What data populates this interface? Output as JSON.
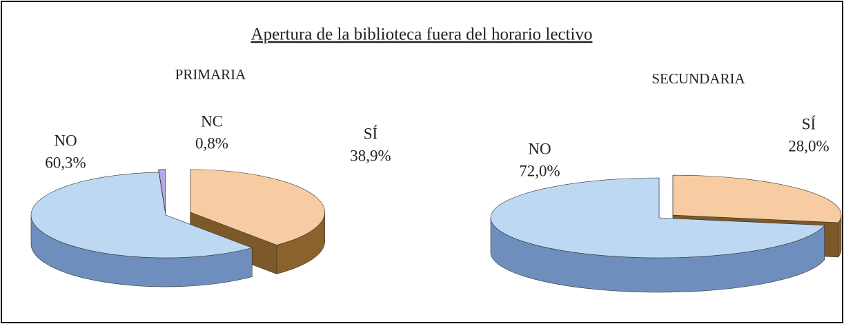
{
  "title": "Apertura de la biblioteca fuera del horario lectivo",
  "chart_data": [
    {
      "type": "pie",
      "title": "PRIMARIA",
      "categories": [
        "SÍ",
        "NO",
        "NC"
      ],
      "values": [
        38.9,
        60.3,
        0.8
      ],
      "value_labels": [
        "38,9%",
        "60,3%",
        "0,8%"
      ],
      "colors": [
        "#f8cca2",
        "#bdd8f2",
        "#b8a8e4"
      ]
    },
    {
      "type": "pie",
      "title": "SECUNDARIA",
      "categories": [
        "SÍ",
        "NO"
      ],
      "values": [
        28.0,
        72.0
      ],
      "value_labels": [
        "28,0%",
        "72,0%"
      ],
      "colors": [
        "#f8cca2",
        "#bdd8f2"
      ]
    }
  ]
}
